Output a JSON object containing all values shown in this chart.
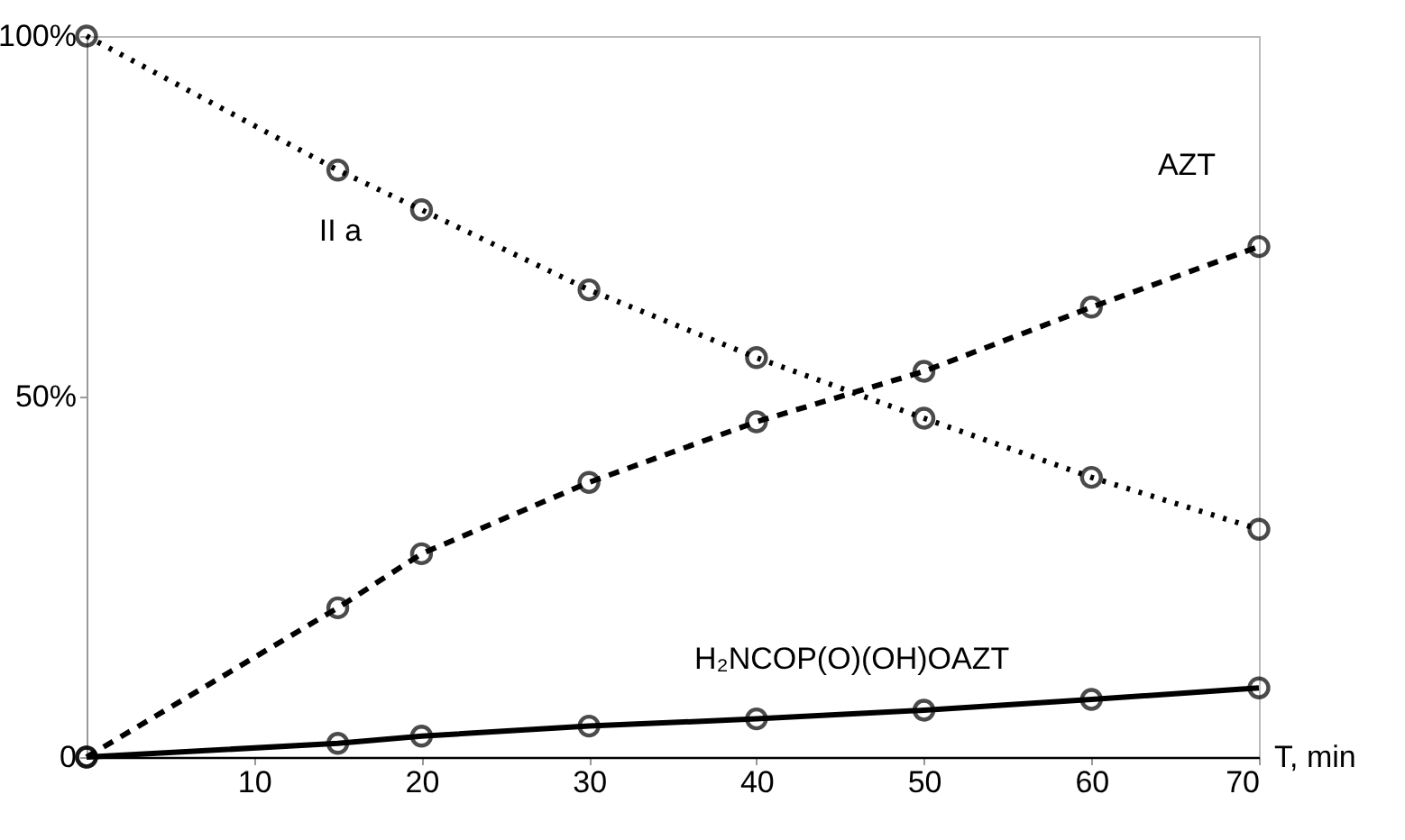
{
  "chart_data": {
    "type": "line",
    "x": [
      0,
      15,
      20,
      30,
      40,
      50,
      60,
      70
    ],
    "series": [
      {
        "name": "II a",
        "color": "#000000",
        "line_style": "dotted",
        "values": [
          100,
          81.4,
          75.9,
          64.8,
          55.4,
          47.0,
          38.8,
          31.6
        ]
      },
      {
        "name": "AZT",
        "color": "#000000",
        "line_style": "dashed",
        "values": [
          0,
          20.7,
          28.2,
          38.1,
          46.5,
          53.5,
          62.4,
          70.8
        ]
      },
      {
        "name": "H₂NCOP(O)(OH)OAZT",
        "color": "#000000",
        "line_style": "solid",
        "values": [
          0,
          1.9,
          2.9,
          4.3,
          5.3,
          6.5,
          8.0,
          9.6
        ]
      }
    ],
    "xlabel": "T, min",
    "xlim": [
      0,
      70
    ],
    "xticks": [
      10,
      20,
      30,
      40,
      50,
      60,
      70
    ],
    "ylim": [
      0,
      100
    ],
    "yticks": [
      0,
      {
        "value": 50,
        "label": "50%"
      },
      {
        "value": 100,
        "label": "100%"
      }
    ],
    "grid": false,
    "marker": "circle"
  }
}
